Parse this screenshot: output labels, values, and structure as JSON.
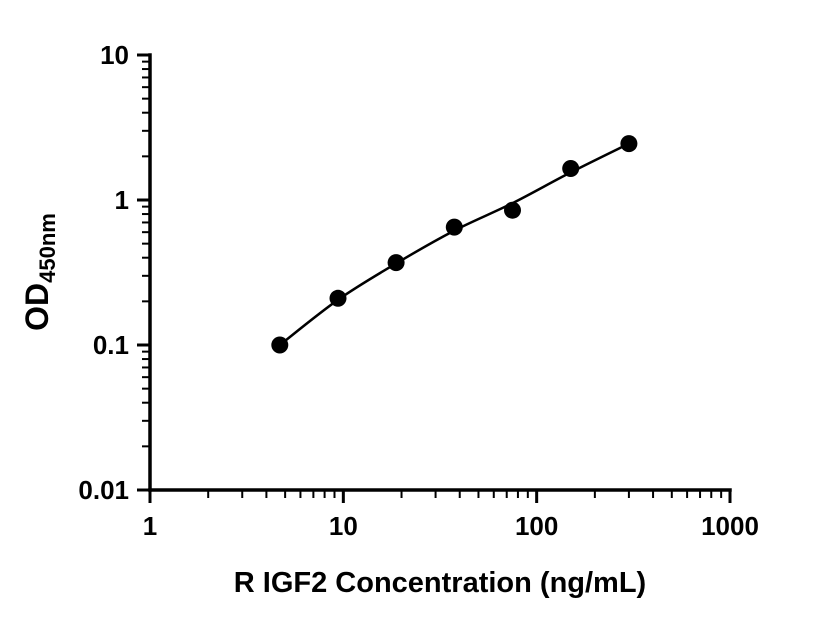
{
  "chart_data": {
    "type": "scatter",
    "title": "",
    "xlabel": "R IGF2 Concentration (ng/mL)",
    "ylabel_main": "OD",
    "ylabel_sub": "450nm",
    "x_scale": "log",
    "y_scale": "log",
    "xlim": [
      1,
      1000
    ],
    "ylim": [
      0.01,
      10
    ],
    "x_ticks": [
      1,
      10,
      100,
      1000
    ],
    "x_tick_labels": [
      "1",
      "10",
      "100",
      "1000"
    ],
    "y_ticks": [
      0.01,
      0.1,
      1,
      10
    ],
    "y_tick_labels": [
      "0.01",
      "0.1",
      "1",
      "10"
    ],
    "grid": false,
    "legend": null,
    "marker_color": "#000000",
    "line_color": "#000000",
    "x": [
      4.69,
      9.38,
      18.75,
      37.5,
      75,
      150,
      300
    ],
    "y": [
      0.1,
      0.21,
      0.37,
      0.65,
      0.85,
      1.65,
      2.45
    ],
    "trend_line": {
      "x": [
        4.69,
        9.38,
        18.75,
        37.5,
        75,
        150,
        300
      ],
      "y": [
        0.1,
        0.205,
        0.365,
        0.615,
        0.95,
        1.55,
        2.45
      ]
    }
  }
}
